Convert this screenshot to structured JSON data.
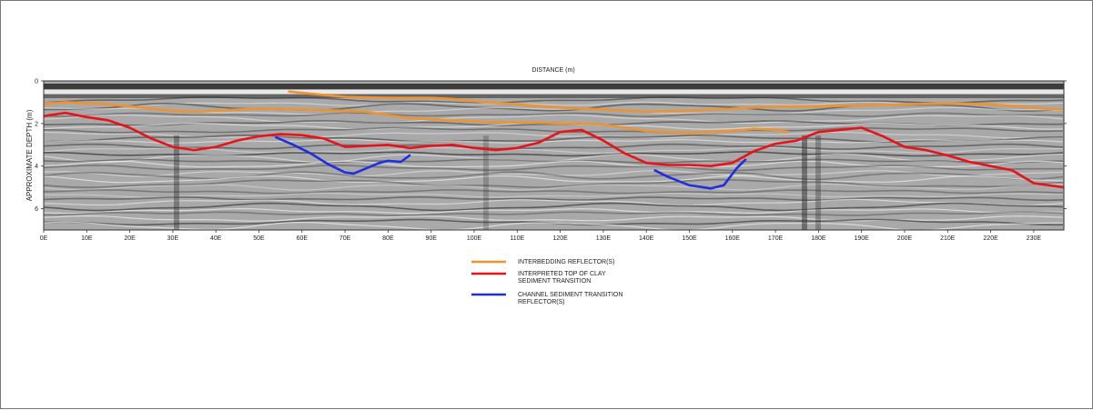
{
  "chart_data": {
    "type": "line",
    "title": "",
    "xlabel": "DISTANCE (m)",
    "ylabel": "APPROXIMATE DEPTH (m)",
    "xlim": [
      0,
      237
    ],
    "ylim": [
      0,
      7
    ],
    "y_inverted": true,
    "x_ticks": [
      {
        "value": 0,
        "label": "0E"
      },
      {
        "value": 10,
        "label": "10E"
      },
      {
        "value": 20,
        "label": "20E"
      },
      {
        "value": 30,
        "label": "30E"
      },
      {
        "value": 40,
        "label": "40E"
      },
      {
        "value": 50,
        "label": "50E"
      },
      {
        "value": 60,
        "label": "60E"
      },
      {
        "value": 70,
        "label": "70E"
      },
      {
        "value": 80,
        "label": "80E"
      },
      {
        "value": 90,
        "label": "90E"
      },
      {
        "value": 100,
        "label": "100E"
      },
      {
        "value": 110,
        "label": "110E"
      },
      {
        "value": 120,
        "label": "120E"
      },
      {
        "value": 130,
        "label": "130E"
      },
      {
        "value": 140,
        "label": "140E"
      },
      {
        "value": 150,
        "label": "150E"
      },
      {
        "value": 160,
        "label": "160E"
      },
      {
        "value": 170,
        "label": "170E"
      },
      {
        "value": 180,
        "label": "180E"
      },
      {
        "value": 190,
        "label": "190E"
      },
      {
        "value": 200,
        "label": "200E"
      },
      {
        "value": 210,
        "label": "210E"
      },
      {
        "value": 220,
        "label": "220E"
      },
      {
        "value": 230,
        "label": "230E"
      }
    ],
    "y_ticks": [
      {
        "value": 0,
        "label": "0"
      },
      {
        "value": 2,
        "label": "2"
      },
      {
        "value": 4,
        "label": "4"
      },
      {
        "value": 6,
        "label": "6"
      }
    ],
    "background": "grayscale GPR radargram",
    "legend_position": "bottom-center",
    "series": [
      {
        "name": "INTERBEDDING REFLECTOR(S)",
        "color": "#f0922f",
        "segments": [
          [
            [
              0,
              1.1
            ],
            [
              5,
              1.0
            ],
            [
              10,
              1.05
            ],
            [
              15,
              1.1
            ],
            [
              20,
              1.2
            ],
            [
              25,
              1.3
            ],
            [
              30,
              1.4
            ],
            [
              35,
              1.45
            ],
            [
              40,
              1.4
            ],
            [
              45,
              1.35
            ],
            [
              50,
              1.3
            ],
            [
              60,
              1.35
            ],
            [
              70,
              1.4
            ],
            [
              75,
              1.45
            ],
            [
              80,
              1.6
            ],
            [
              85,
              1.75
            ],
            [
              90,
              1.8
            ],
            [
              95,
              1.85
            ],
            [
              100,
              1.9
            ],
            [
              105,
              1.95
            ],
            [
              110,
              1.95
            ],
            [
              115,
              1.95
            ],
            [
              120,
              2.0
            ],
            [
              125,
              2.0
            ],
            [
              130,
              2.05
            ],
            [
              135,
              2.2
            ],
            [
              140,
              2.35
            ],
            [
              145,
              2.4
            ],
            [
              150,
              2.45
            ],
            [
              155,
              2.4
            ],
            [
              160,
              2.35
            ],
            [
              165,
              2.25
            ],
            [
              170,
              2.3
            ],
            [
              173,
              2.4
            ]
          ],
          [
            [
              57,
              0.5
            ],
            [
              62,
              0.6
            ],
            [
              70,
              0.75
            ],
            [
              80,
              0.8
            ],
            [
              90,
              0.8
            ],
            [
              95,
              0.85
            ],
            [
              100,
              0.95
            ],
            [
              110,
              1.1
            ],
            [
              120,
              1.25
            ],
            [
              130,
              1.35
            ],
            [
              140,
              1.45
            ],
            [
              150,
              1.4
            ],
            [
              160,
              1.3
            ],
            [
              170,
              1.2
            ],
            [
              180,
              1.2
            ],
            [
              190,
              1.15
            ],
            [
              200,
              1.1
            ],
            [
              210,
              1.05
            ],
            [
              220,
              1.1
            ],
            [
              230,
              1.25
            ],
            [
              237,
              1.35
            ]
          ]
        ]
      },
      {
        "name": "INTERPRETED TOP OF CLAY SEDIMENT TRANSITION",
        "color": "#e8131a",
        "segments": [
          [
            [
              0,
              1.65
            ],
            [
              5,
              1.5
            ],
            [
              10,
              1.7
            ],
            [
              15,
              1.85
            ],
            [
              20,
              2.2
            ],
            [
              25,
              2.7
            ],
            [
              30,
              3.1
            ],
            [
              35,
              3.25
            ],
            [
              40,
              3.1
            ],
            [
              45,
              2.8
            ],
            [
              50,
              2.6
            ],
            [
              55,
              2.5
            ],
            [
              60,
              2.55
            ],
            [
              65,
              2.7
            ],
            [
              70,
              3.1
            ],
            [
              75,
              3.05
            ],
            [
              80,
              3.0
            ],
            [
              85,
              3.15
            ],
            [
              90,
              3.05
            ],
            [
              95,
              3.0
            ],
            [
              100,
              3.15
            ],
            [
              105,
              3.25
            ],
            [
              110,
              3.15
            ],
            [
              115,
              2.9
            ],
            [
              120,
              2.4
            ],
            [
              125,
              2.3
            ],
            [
              130,
              2.8
            ],
            [
              135,
              3.4
            ],
            [
              140,
              3.85
            ],
            [
              145,
              3.95
            ],
            [
              150,
              3.95
            ],
            [
              155,
              4.0
            ],
            [
              160,
              3.85
            ],
            [
              165,
              3.3
            ],
            [
              170,
              2.95
            ],
            [
              175,
              2.8
            ],
            [
              180,
              2.4
            ],
            [
              185,
              2.3
            ],
            [
              190,
              2.2
            ],
            [
              195,
              2.6
            ],
            [
              200,
              3.1
            ],
            [
              205,
              3.25
            ],
            [
              210,
              3.5
            ],
            [
              215,
              3.8
            ],
            [
              220,
              4.0
            ],
            [
              225,
              4.2
            ],
            [
              230,
              4.8
            ],
            [
              237,
              5.0
            ]
          ]
        ]
      },
      {
        "name": "CHANNEL SEDIMENT TRANSITION REFLECTOR(S)",
        "color": "#1f2fe0",
        "segments": [
          [
            [
              54,
              2.65
            ],
            [
              58,
              3.0
            ],
            [
              62,
              3.4
            ],
            [
              66,
              3.9
            ],
            [
              70,
              4.3
            ],
            [
              72,
              4.35
            ],
            [
              75,
              4.1
            ],
            [
              78,
              3.85
            ],
            [
              80,
              3.75
            ],
            [
              83,
              3.8
            ],
            [
              85,
              3.5
            ]
          ],
          [
            [
              142,
              4.2
            ],
            [
              145,
              4.5
            ],
            [
              150,
              4.9
            ],
            [
              155,
              5.05
            ],
            [
              158,
              4.9
            ],
            [
              161,
              4.1
            ],
            [
              163,
              3.7
            ]
          ]
        ]
      }
    ]
  },
  "legend": {
    "items": [
      {
        "lines": [
          "INTERBEDDING REFLECTOR(S)"
        ],
        "color": "#f0922f"
      },
      {
        "lines": [
          "INTERPRETED TOP OF CLAY",
          "SEDIMENT TRANSITION"
        ],
        "color": "#e8131a"
      },
      {
        "lines": [
          "CHANNEL SEDIMENT TRANSITION",
          "REFLECTOR(S)"
        ],
        "color": "#1f2fe0"
      }
    ]
  }
}
